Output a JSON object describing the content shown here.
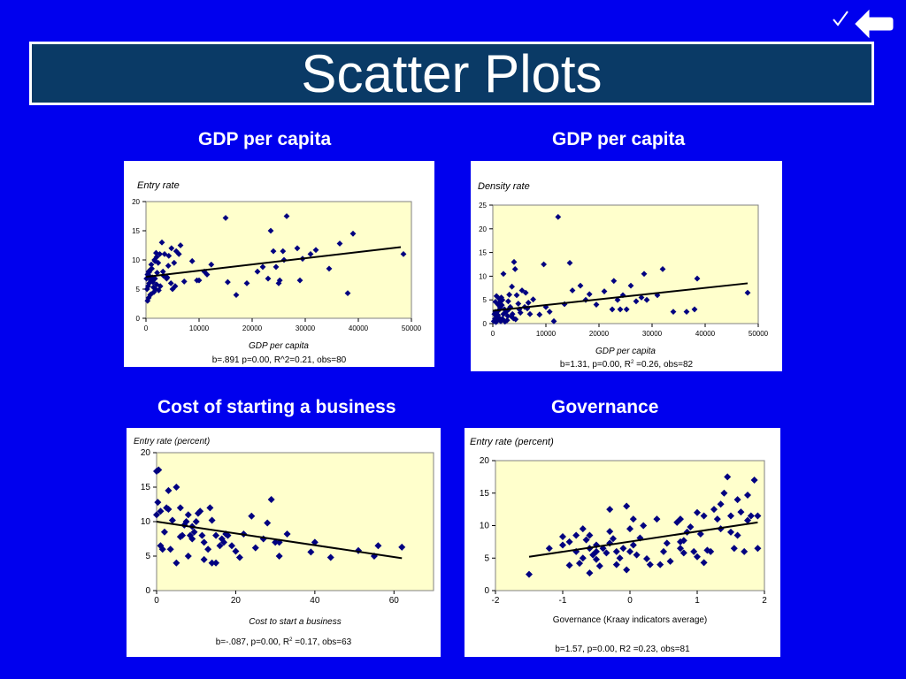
{
  "slide": {
    "title": "Scatter Plots",
    "colors": {
      "background": "#0000ee",
      "title_box": "#0a3a66",
      "plot_area": "#ffffcc",
      "marker": "#000080",
      "trend": "#000000"
    }
  },
  "nav": {
    "check_icon": "checkmark-icon",
    "back_icon": "back-arrow-icon"
  },
  "chart_data": [
    {
      "type": "scatter",
      "heading": "GDP per capita",
      "ylabel": "Entry rate",
      "xlabel": "GDP per capita",
      "footnote": "b=.891 p=0.00, R^2=0.21, obs=80",
      "xlim": [
        0,
        50000
      ],
      "ylim": [
        0,
        20
      ],
      "xticks": [
        0,
        10000,
        20000,
        30000,
        40000,
        50000
      ],
      "yticks": [
        0,
        5,
        10,
        15,
        20
      ],
      "trend": [
        [
          0,
          7.1
        ],
        [
          48000,
          12.2
        ]
      ],
      "points": [
        [
          300,
          3
        ],
        [
          500,
          3.5
        ],
        [
          800,
          4
        ],
        [
          200,
          5
        ],
        [
          400,
          5.5
        ],
        [
          600,
          6
        ],
        [
          900,
          6.5
        ],
        [
          1200,
          7
        ],
        [
          300,
          7.5
        ],
        [
          500,
          8
        ],
        [
          800,
          8.3
        ],
        [
          100,
          6.8
        ],
        [
          700,
          7.2
        ],
        [
          1500,
          4.5
        ],
        [
          1800,
          5
        ],
        [
          2000,
          5.8
        ],
        [
          1300,
          6.2
        ],
        [
          1700,
          6.8
        ],
        [
          2100,
          7.8
        ],
        [
          1100,
          8.5
        ],
        [
          2300,
          9.5
        ],
        [
          1600,
          10
        ],
        [
          2000,
          10.5
        ],
        [
          2600,
          11
        ],
        [
          1900,
          11.2
        ],
        [
          3000,
          13
        ],
        [
          3500,
          11
        ],
        [
          3200,
          8
        ],
        [
          4000,
          7
        ],
        [
          4300,
          10.7
        ],
        [
          4700,
          6
        ],
        [
          5000,
          5
        ],
        [
          5300,
          9.5
        ],
        [
          5700,
          11.5
        ],
        [
          6200,
          11
        ],
        [
          6500,
          12.5
        ],
        [
          5500,
          5.5
        ],
        [
          4800,
          12
        ],
        [
          4200,
          9
        ],
        [
          2700,
          5.5
        ],
        [
          3900,
          6.8
        ],
        [
          9600,
          6.5
        ],
        [
          10000,
          6.5
        ],
        [
          11000,
          8
        ],
        [
          11500,
          7.5
        ],
        [
          12300,
          9.2
        ],
        [
          15000,
          17.2
        ],
        [
          15400,
          6.2
        ],
        [
          17000,
          4
        ],
        [
          19000,
          6
        ],
        [
          21000,
          8
        ],
        [
          22000,
          8.8
        ],
        [
          23000,
          6.8
        ],
        [
          23500,
          15
        ],
        [
          24000,
          11.5
        ],
        [
          24500,
          8.8
        ],
        [
          25000,
          6
        ],
        [
          25200,
          6.5
        ],
        [
          25800,
          11.5
        ],
        [
          26000,
          10
        ],
        [
          26500,
          17.5
        ],
        [
          28500,
          12
        ],
        [
          29000,
          6.5
        ],
        [
          29500,
          10.2
        ],
        [
          31000,
          11
        ],
        [
          32000,
          11.7
        ],
        [
          34500,
          8.5
        ],
        [
          36500,
          12.8
        ],
        [
          38000,
          4.3
        ],
        [
          39000,
          14.5
        ],
        [
          48500,
          11
        ],
        [
          7200,
          6.3
        ],
        [
          8700,
          9.8
        ],
        [
          1000,
          9.2
        ],
        [
          600,
          7.9
        ],
        [
          1400,
          5.3
        ],
        [
          2400,
          4.8
        ],
        [
          3300,
          7.3
        ],
        [
          900,
          4.1
        ],
        [
          1700,
          9.8
        ]
      ]
    },
    {
      "type": "scatter",
      "heading": "GDP per capita",
      "ylabel": "Density rate",
      "xlabel": "GDP per capita",
      "footnote_pre": "b=1.31, p=0.00, R",
      "footnote_sup": "2",
      "footnote_post": " =0.26, obs=82",
      "xlim": [
        0,
        50000
      ],
      "ylim": [
        0,
        25
      ],
      "xticks": [
        0,
        10000,
        20000,
        30000,
        40000,
        50000
      ],
      "yticks": [
        0,
        5,
        10,
        15,
        20,
        25
      ],
      "trend": [
        [
          0,
          2.7
        ],
        [
          48000,
          8.5
        ]
      ],
      "points": [
        [
          200,
          0.5
        ],
        [
          400,
          1
        ],
        [
          600,
          0.3
        ],
        [
          800,
          1.5
        ],
        [
          300,
          2
        ],
        [
          500,
          2.5
        ],
        [
          900,
          0.8
        ],
        [
          1200,
          1.2
        ],
        [
          1500,
          0.5
        ],
        [
          1800,
          1
        ],
        [
          2000,
          2
        ],
        [
          2200,
          3
        ],
        [
          1000,
          4
        ],
        [
          1300,
          4.5
        ],
        [
          1600,
          5.5
        ],
        [
          2500,
          2.5
        ],
        [
          3000,
          3
        ],
        [
          3300,
          3.5
        ],
        [
          3700,
          2
        ],
        [
          4000,
          13
        ],
        [
          4200,
          11.5
        ],
        [
          4500,
          6
        ],
        [
          5000,
          3
        ],
        [
          5500,
          7
        ],
        [
          6000,
          3.5
        ],
        [
          6200,
          6.5
        ],
        [
          7000,
          2
        ],
        [
          2000,
          10.5
        ],
        [
          1800,
          5
        ],
        [
          3500,
          1.5
        ],
        [
          2700,
          0.7
        ],
        [
          1100,
          2.8
        ],
        [
          700,
          5.8
        ],
        [
          9600,
          12.5
        ],
        [
          10000,
          3.5
        ],
        [
          10700,
          2.5
        ],
        [
          11500,
          0.5
        ],
        [
          12300,
          22.5
        ],
        [
          14500,
          12.8
        ],
        [
          15000,
          7
        ],
        [
          16500,
          8
        ],
        [
          17500,
          5
        ],
        [
          19500,
          4
        ],
        [
          21000,
          6.8
        ],
        [
          22500,
          3
        ],
        [
          22800,
          9
        ],
        [
          23500,
          5
        ],
        [
          24000,
          3
        ],
        [
          24500,
          6
        ],
        [
          25200,
          3
        ],
        [
          26000,
          8
        ],
        [
          28000,
          5.5
        ],
        [
          28500,
          10.5
        ],
        [
          29000,
          5
        ],
        [
          31000,
          6
        ],
        [
          32000,
          11.5
        ],
        [
          34000,
          2.5
        ],
        [
          36500,
          2.5
        ],
        [
          38000,
          3
        ],
        [
          38500,
          9.5
        ],
        [
          48000,
          6.5
        ],
        [
          4800,
          4.2
        ],
        [
          3900,
          1.1
        ],
        [
          6500,
          3.2
        ],
        [
          2900,
          4.7
        ],
        [
          1400,
          3.4
        ],
        [
          8800,
          1.9
        ],
        [
          5200,
          2.3
        ],
        [
          500,
          4.6
        ],
        [
          2300,
          0.4
        ],
        [
          3100,
          6.1
        ],
        [
          1700,
          3.9
        ],
        [
          7600,
          5.1
        ],
        [
          950,
          1.8
        ],
        [
          4300,
          0.9
        ],
        [
          1250,
          5.2
        ],
        [
          2800,
          1.6
        ],
        [
          6700,
          4.4
        ],
        [
          3600,
          7.8
        ],
        [
          13500,
          4.1
        ],
        [
          18200,
          6.2
        ],
        [
          27000,
          4.7
        ]
      ]
    },
    {
      "type": "scatter",
      "heading": "Cost of starting a business",
      "ylabel": "Entry rate (percent)",
      "xlabel": "Cost to start a business",
      "footnote_pre": "b=-.087, p=0.00, R",
      "footnote_sup": "2",
      "footnote_post": " =0.17, obs=63",
      "xlim": [
        0,
        70
      ],
      "ylim": [
        0,
        20
      ],
      "xticks": [
        0,
        20,
        40,
        60
      ],
      "yticks": [
        0,
        5,
        10,
        15,
        20
      ],
      "trend": [
        [
          0,
          10
        ],
        [
          62,
          4.7
        ]
      ],
      "points": [
        [
          0,
          17.3
        ],
        [
          0.5,
          17.5
        ],
        [
          0.3,
          12.8
        ],
        [
          0,
          11
        ],
        [
          1,
          11.5
        ],
        [
          1.5,
          6
        ],
        [
          1,
          6.5
        ],
        [
          2,
          8.5
        ],
        [
          2.5,
          12
        ],
        [
          3,
          14.5
        ],
        [
          3,
          11.8
        ],
        [
          3.5,
          6
        ],
        [
          5,
          15
        ],
        [
          5,
          4
        ],
        [
          6,
          12
        ],
        [
          6,
          7.8
        ],
        [
          6.5,
          8
        ],
        [
          7,
          9.5
        ],
        [
          7.5,
          10
        ],
        [
          8,
          11
        ],
        [
          8,
          5
        ],
        [
          8.5,
          8
        ],
        [
          9,
          7.5
        ],
        [
          9.5,
          8.5
        ],
        [
          10,
          10
        ],
        [
          10.5,
          11.2
        ],
        [
          11,
          11.5
        ],
        [
          11.5,
          8
        ],
        [
          12,
          7
        ],
        [
          12,
          4.5
        ],
        [
          13,
          6
        ],
        [
          13.5,
          12
        ],
        [
          14,
          4
        ],
        [
          15,
          4
        ],
        [
          15,
          8
        ],
        [
          16,
          6.5
        ],
        [
          16.5,
          7.5
        ],
        [
          17,
          7
        ],
        [
          17.5,
          8.2
        ],
        [
          18,
          8
        ],
        [
          19,
          6.5
        ],
        [
          21,
          4.8
        ],
        [
          22,
          8.2
        ],
        [
          24,
          10.8
        ],
        [
          27,
          7.5
        ],
        [
          28,
          9.8
        ],
        [
          29,
          13.2
        ],
        [
          30,
          7
        ],
        [
          31,
          5
        ],
        [
          31,
          7
        ],
        [
          33,
          8.2
        ],
        [
          39,
          5.6
        ],
        [
          40,
          7
        ],
        [
          44,
          4.8
        ],
        [
          51,
          5.8
        ],
        [
          55,
          5
        ],
        [
          56,
          6.5
        ],
        [
          62,
          6.3
        ],
        [
          4,
          10.2
        ],
        [
          9,
          9.3
        ],
        [
          14,
          10.2
        ],
        [
          20,
          5.7
        ],
        [
          25,
          6.2
        ]
      ]
    },
    {
      "type": "scatter",
      "heading": "Governance",
      "ylabel": "Entry rate (percent)",
      "xlabel": "Governance (Kraay indicators average)",
      "footnote": "b=1.57, p=0.00, R2 =0.23, obs=81",
      "xlim": [
        -2,
        2
      ],
      "ylim": [
        0,
        20
      ],
      "xticks": [
        -2,
        -1,
        0,
        1,
        2
      ],
      "yticks": [
        0,
        5,
        10,
        15,
        20
      ],
      "trend": [
        [
          -1.5,
          5.2
        ],
        [
          1.9,
          10.5
        ]
      ],
      "points": [
        [
          -1.5,
          2.5
        ],
        [
          -1.2,
          6.5
        ],
        [
          -1,
          7
        ],
        [
          -1,
          8.3
        ],
        [
          -0.9,
          7.5
        ],
        [
          -0.8,
          8.5
        ],
        [
          -0.8,
          6
        ],
        [
          -0.75,
          4.2
        ],
        [
          -0.7,
          9.5
        ],
        [
          -0.7,
          5
        ],
        [
          -0.65,
          7.8
        ],
        [
          -0.6,
          6.5
        ],
        [
          -0.6,
          8.5
        ],
        [
          -0.55,
          5.5
        ],
        [
          -0.5,
          6
        ],
        [
          -0.5,
          7
        ],
        [
          -0.5,
          4.8
        ],
        [
          -0.45,
          3.8
        ],
        [
          -0.4,
          6.5
        ],
        [
          -0.35,
          5.8
        ],
        [
          -0.3,
          7.3
        ],
        [
          -0.3,
          12.5
        ],
        [
          -0.25,
          8
        ],
        [
          -0.2,
          6
        ],
        [
          -0.2,
          4
        ],
        [
          -0.15,
          5
        ],
        [
          -0.1,
          6.5
        ],
        [
          -0.05,
          3.2
        ],
        [
          -0.05,
          13
        ],
        [
          0,
          6
        ],
        [
          0,
          9.5
        ],
        [
          0.05,
          11
        ],
        [
          0.05,
          7
        ],
        [
          0.1,
          5.5
        ],
        [
          0.2,
          10
        ],
        [
          0.3,
          4
        ],
        [
          0.4,
          11
        ],
        [
          0.45,
          4
        ],
        [
          0.5,
          6
        ],
        [
          0.6,
          4.5
        ],
        [
          0.7,
          10.5
        ],
        [
          0.75,
          11
        ],
        [
          0.75,
          7.5
        ],
        [
          0.75,
          6.5
        ],
        [
          0.8,
          5.8
        ],
        [
          0.8,
          7.7
        ],
        [
          0.85,
          9
        ],
        [
          0.9,
          9.8
        ],
        [
          0.95,
          6
        ],
        [
          1,
          12
        ],
        [
          1.05,
          8.7
        ],
        [
          1.1,
          4.3
        ],
        [
          1.1,
          11.5
        ],
        [
          1.15,
          6.2
        ],
        [
          1.2,
          6
        ],
        [
          1.25,
          12.5
        ],
        [
          1.3,
          11
        ],
        [
          1.35,
          9.5
        ],
        [
          1.4,
          15
        ],
        [
          1.45,
          17.5
        ],
        [
          1.5,
          11.5
        ],
        [
          1.5,
          9
        ],
        [
          1.55,
          6.5
        ],
        [
          1.6,
          8.5
        ],
        [
          1.6,
          14
        ],
        [
          1.7,
          6
        ],
        [
          1.75,
          14.7
        ],
        [
          1.75,
          10.8
        ],
        [
          1.8,
          11.5
        ],
        [
          1.85,
          17
        ],
        [
          1.9,
          6.5
        ],
        [
          1.9,
          11.5
        ],
        [
          -0.9,
          3.9
        ],
        [
          -0.3,
          9.1
        ],
        [
          0.15,
          8.1
        ],
        [
          0.55,
          7.3
        ],
        [
          1.0,
          5.2
        ],
        [
          1.35,
          13.3
        ],
        [
          -0.6,
          2.7
        ],
        [
          0.25,
          4.9
        ],
        [
          1.65,
          12.1
        ]
      ]
    }
  ]
}
